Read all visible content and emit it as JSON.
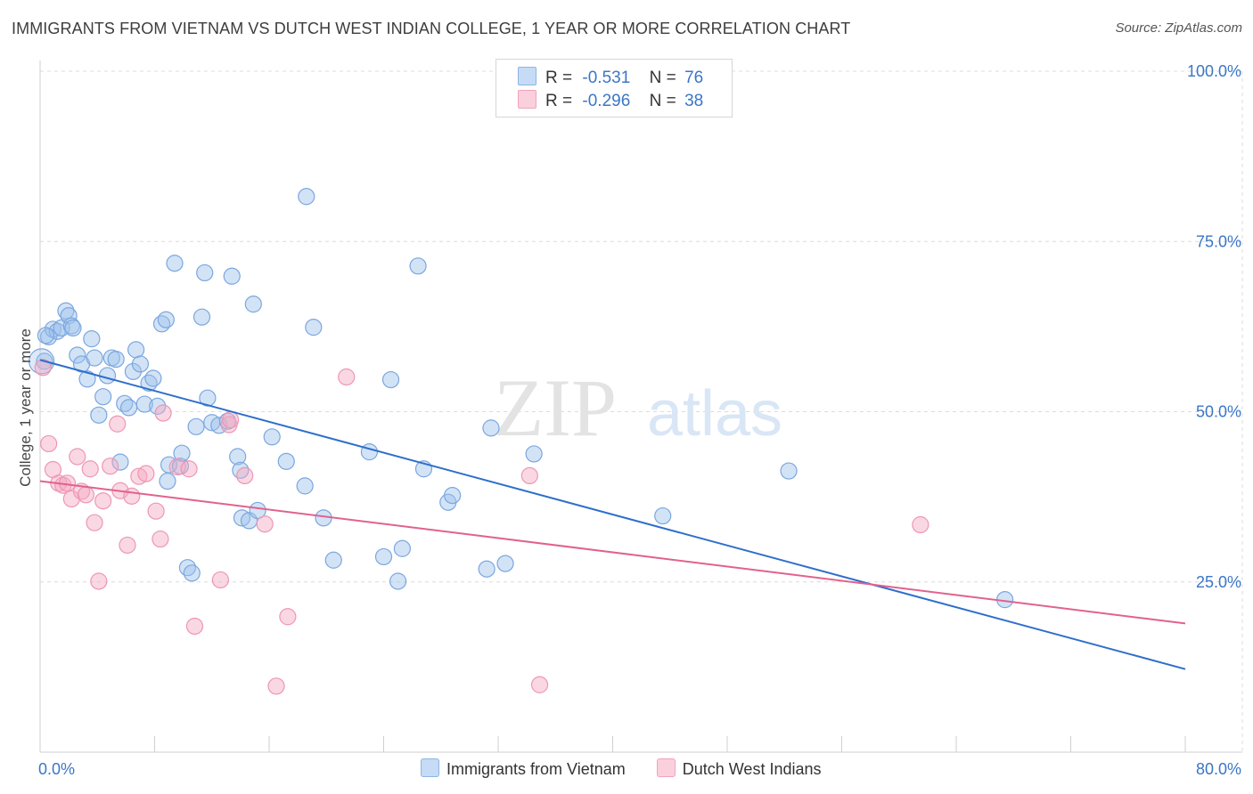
{
  "title": "IMMIGRANTS FROM VIETNAM VS DUTCH WEST INDIAN COLLEGE, 1 YEAR OR MORE CORRELATION CHART",
  "source": "Source: ZipAtlas.com",
  "watermark": {
    "zip": "ZIP",
    "atlas": "atlas"
  },
  "legend": {
    "rows": [
      {
        "r_label": "R =",
        "r_value": "-0.531",
        "n_label": "N =",
        "n_value": "76"
      },
      {
        "r_label": "R =",
        "r_value": "-0.296",
        "n_label": "N =",
        "n_value": "38"
      }
    ]
  },
  "chart_data": {
    "type": "scatter",
    "title": "IMMIGRANTS FROM VIETNAM VS DUTCH WEST INDIAN COLLEGE, 1 YEAR OR MORE CORRELATION CHART",
    "xlabel": "",
    "ylabel": "College, 1 year or more",
    "xlim": [
      0,
      80
    ],
    "ylim": [
      0,
      100
    ],
    "x_tick_labels": [
      "0.0%",
      "80.0%"
    ],
    "y_ticks": [
      25,
      50,
      75,
      100
    ],
    "y_tick_labels": [
      "25.0%",
      "50.0%",
      "75.0%",
      "100.0%"
    ],
    "grid": true,
    "legend_position": "top-center",
    "series": [
      {
        "name": "Immigrants from Vietnam",
        "color": "#9dc0ec",
        "line_color": "#2e6fcb",
        "r": -0.531,
        "n": 76,
        "trend": {
          "x": [
            0,
            80
          ],
          "y": [
            57.6,
            12.2
          ]
        },
        "points": [
          [
            0.3,
            57.4
          ],
          [
            0.6,
            61.0
          ],
          [
            0.9,
            62.1
          ],
          [
            1.2,
            61.8
          ],
          [
            1.5,
            62.3
          ],
          [
            1.8,
            64.8
          ],
          [
            2.0,
            64.1
          ],
          [
            2.2,
            62.6
          ],
          [
            2.6,
            58.3
          ],
          [
            2.9,
            57.0
          ],
          [
            3.3,
            54.8
          ],
          [
            3.6,
            60.7
          ],
          [
            3.8,
            57.9
          ],
          [
            4.1,
            49.5
          ],
          [
            4.4,
            52.2
          ],
          [
            4.7,
            55.3
          ],
          [
            5.0,
            57.9
          ],
          [
            5.3,
            57.7
          ],
          [
            5.6,
            42.6
          ],
          [
            5.9,
            51.2
          ],
          [
            6.2,
            50.6
          ],
          [
            6.5,
            55.9
          ],
          [
            6.7,
            59.1
          ],
          [
            7.0,
            57.0
          ],
          [
            7.3,
            51.1
          ],
          [
            7.6,
            54.2
          ],
          [
            7.9,
            54.9
          ],
          [
            8.2,
            50.8
          ],
          [
            8.5,
            62.9
          ],
          [
            8.8,
            63.5
          ],
          [
            8.9,
            39.8
          ],
          [
            9.0,
            42.2
          ],
          [
            9.4,
            71.8
          ],
          [
            9.8,
            42.0
          ],
          [
            9.9,
            43.9
          ],
          [
            10.3,
            27.1
          ],
          [
            10.6,
            26.3
          ],
          [
            10.9,
            47.8
          ],
          [
            11.3,
            63.9
          ],
          [
            11.5,
            70.4
          ],
          [
            11.7,
            52.0
          ],
          [
            12.0,
            48.4
          ],
          [
            12.5,
            48.0
          ],
          [
            13.1,
            48.6
          ],
          [
            13.4,
            69.9
          ],
          [
            13.8,
            43.4
          ],
          [
            14.0,
            41.4
          ],
          [
            14.1,
            34.4
          ],
          [
            14.6,
            34.0
          ],
          [
            14.9,
            65.8
          ],
          [
            15.2,
            35.5
          ],
          [
            16.2,
            46.3
          ],
          [
            17.2,
            42.7
          ],
          [
            18.5,
            39.1
          ],
          [
            18.6,
            81.6
          ],
          [
            19.1,
            62.4
          ],
          [
            19.8,
            34.4
          ],
          [
            20.5,
            28.2
          ],
          [
            23.0,
            44.1
          ],
          [
            24.0,
            28.7
          ],
          [
            24.5,
            54.7
          ],
          [
            25.0,
            25.1
          ],
          [
            25.3,
            29.9
          ],
          [
            26.4,
            71.4
          ],
          [
            26.8,
            41.6
          ],
          [
            28.5,
            36.7
          ],
          [
            28.8,
            37.7
          ],
          [
            31.5,
            47.6
          ],
          [
            32.5,
            27.7
          ],
          [
            31.2,
            26.9
          ],
          [
            34.5,
            43.8
          ],
          [
            43.5,
            34.7
          ],
          [
            52.3,
            41.3
          ],
          [
            67.4,
            22.4
          ],
          [
            2.3,
            62.3
          ],
          [
            0.4,
            61.2
          ]
        ]
      },
      {
        "name": "Dutch West Indians",
        "color": "#f4a9c0",
        "line_color": "#e0628e",
        "r": -0.296,
        "n": 38,
        "trend": {
          "x": [
            0,
            80
          ],
          "y": [
            39.8,
            18.9
          ]
        },
        "points": [
          [
            0.2,
            56.5
          ],
          [
            0.6,
            45.3
          ],
          [
            0.9,
            41.5
          ],
          [
            1.3,
            39.5
          ],
          [
            1.6,
            39.2
          ],
          [
            1.9,
            39.5
          ],
          [
            2.2,
            37.2
          ],
          [
            2.6,
            43.4
          ],
          [
            2.9,
            38.3
          ],
          [
            3.2,
            37.8
          ],
          [
            3.5,
            41.6
          ],
          [
            3.8,
            33.7
          ],
          [
            4.1,
            25.1
          ],
          [
            4.4,
            36.9
          ],
          [
            4.9,
            42.0
          ],
          [
            5.4,
            48.2
          ],
          [
            5.6,
            38.4
          ],
          [
            6.1,
            30.4
          ],
          [
            6.4,
            37.6
          ],
          [
            6.9,
            40.5
          ],
          [
            7.4,
            40.9
          ],
          [
            8.1,
            35.4
          ],
          [
            8.4,
            31.3
          ],
          [
            8.6,
            49.8
          ],
          [
            9.6,
            41.9
          ],
          [
            10.4,
            41.6
          ],
          [
            10.8,
            18.5
          ],
          [
            12.6,
            25.3
          ],
          [
            13.2,
            48.1
          ],
          [
            14.3,
            40.6
          ],
          [
            15.7,
            33.5
          ],
          [
            16.5,
            9.7
          ],
          [
            17.3,
            19.9
          ],
          [
            21.4,
            55.1
          ],
          [
            34.2,
            40.6
          ],
          [
            34.9,
            9.9
          ],
          [
            61.5,
            33.4
          ],
          [
            13.3,
            48.8
          ]
        ]
      }
    ]
  }
}
